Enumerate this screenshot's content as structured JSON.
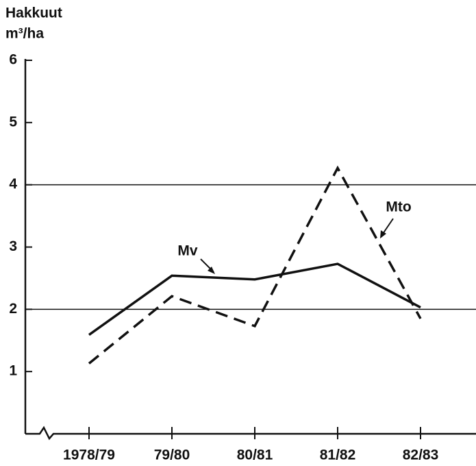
{
  "chart_data": {
    "type": "line",
    "y_label": [
      "Hakkuut",
      "m³/ha"
    ],
    "categories": [
      "1978/79",
      "79/80",
      "80/81",
      "81/82",
      "82/83"
    ],
    "series": [
      {
        "name": "Mv",
        "color": "#111111",
        "dash": false,
        "values": [
          1.59,
          2.54,
          2.48,
          2.73,
          2.03
        ]
      },
      {
        "name": "Mto",
        "color": "#111111",
        "dash": true,
        "values": [
          1.13,
          2.21,
          1.73,
          4.27,
          1.85
        ]
      }
    ],
    "ylim": [
      0,
      6
    ],
    "yticks": [
      1,
      2,
      3,
      4,
      5,
      6
    ],
    "grid_values": [
      2,
      4
    ]
  }
}
